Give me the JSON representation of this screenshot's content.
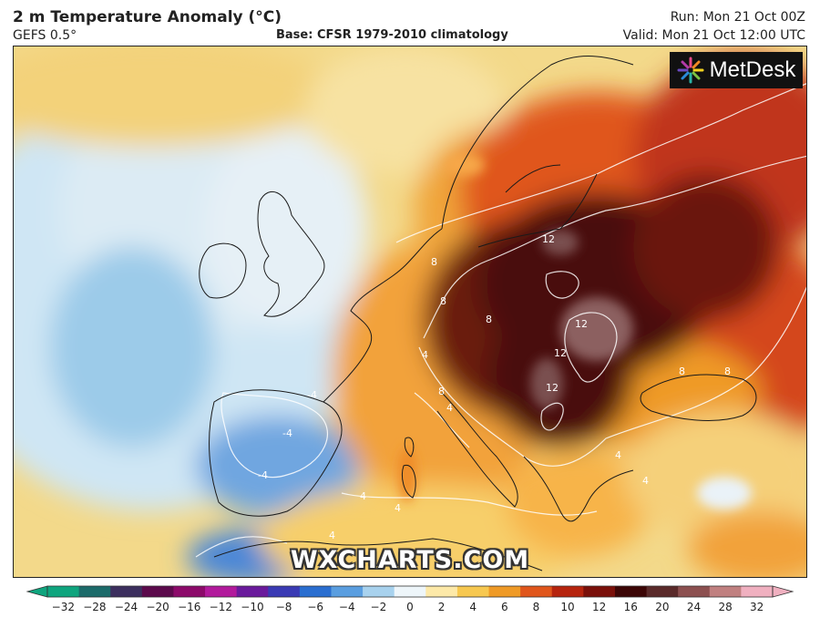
{
  "header": {
    "title": "2 m Temperature Anomaly (°C)",
    "model": "GEFS 0.5°",
    "base": "Base: CFSR 1979-2010 climatology",
    "run": "Run: Mon 21 Oct 00Z",
    "valid": "Valid: Mon 21 Oct 12:00 UTC"
  },
  "logos": {
    "metdesk": "MetDesk",
    "watermark": "WXCHARTS.COM"
  },
  "map": {
    "region": "Europe",
    "contour_labels": [
      "12",
      "12",
      "12",
      "12",
      "8",
      "8",
      "8",
      "8",
      "8",
      "8",
      "4",
      "4",
      "4",
      "4",
      "4",
      "4",
      "4",
      "-4",
      "-4",
      "-4"
    ]
  },
  "colorbar": {
    "labels": [
      "−32",
      "−28",
      "−24",
      "−20",
      "−16",
      "−12",
      "−10",
      "−8",
      "−6",
      "−4",
      "−2",
      "0",
      "2",
      "4",
      "6",
      "8",
      "10",
      "12",
      "16",
      "20",
      "24",
      "28",
      "32"
    ],
    "colors": [
      "#0fa57e",
      "#1c6b6a",
      "#3c2f5e",
      "#5c0a4c",
      "#8c0a6a",
      "#b21a9c",
      "#6a1a9c",
      "#3a3ab4",
      "#2a6ed0",
      "#5a9ee0",
      "#a8d2ee",
      "#eef6fa",
      "#fde9a8",
      "#f7c850",
      "#ef9a26",
      "#e0561c",
      "#b6240e",
      "#7a100a",
      "#3c0606",
      "#5a2a2a",
      "#8c5050",
      "#c08080",
      "#f0b0c0"
    ]
  }
}
